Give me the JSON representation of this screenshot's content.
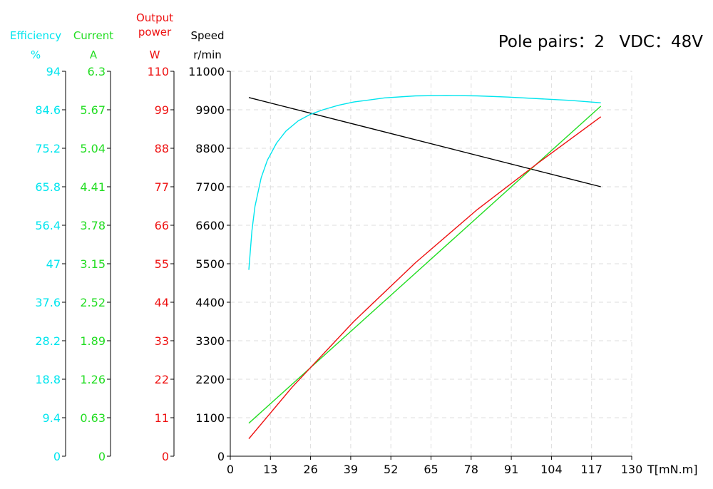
{
  "header": {
    "pole_pairs": "Pole pairs：2",
    "vdc": "VDC：48V"
  },
  "axes": {
    "efficiency": {
      "title": "Efficiency",
      "unit": "%",
      "color": "#00e5ee",
      "ticks": [
        "0",
        "9.4",
        "18.8",
        "28.2",
        "37.6",
        "47",
        "56.4",
        "65.8",
        "75.2",
        "84.6",
        "94"
      ]
    },
    "current": {
      "title": "Current",
      "unit": "A",
      "color": "#22dd22",
      "ticks": [
        "0",
        "0.63",
        "1.26",
        "1.89",
        "2.52",
        "3.15",
        "3.78",
        "4.41",
        "5.04",
        "5.67",
        "6.3"
      ]
    },
    "power": {
      "title": "Output\npower",
      "unit": "W",
      "color": "#ee1111",
      "ticks": [
        "0",
        "11",
        "22",
        "33",
        "44",
        "55",
        "66",
        "77",
        "88",
        "99",
        "110"
      ]
    },
    "speed": {
      "title": "Speed",
      "unit": "r/min",
      "color": "#000000",
      "ticks": [
        "0",
        "1100",
        "2200",
        "3300",
        "4400",
        "5500",
        "6600",
        "7700",
        "8800",
        "9900",
        "11000"
      ]
    },
    "torque": {
      "label": "T[mN.m]",
      "ticks": [
        "0",
        "13",
        "26",
        "39",
        "52",
        "65",
        "78",
        "91",
        "104",
        "117",
        "130"
      ]
    }
  },
  "chart_data": {
    "type": "line",
    "xlabel": "T[mN.m]",
    "xlim": [
      0,
      130
    ],
    "grid": true,
    "series": [
      {
        "axis": "speed",
        "ylim": [
          0,
          11000
        ],
        "color": "#000000",
        "x": [
          6,
          120
        ],
        "y": [
          10250,
          7700
        ]
      },
      {
        "axis": "efficiency",
        "ylim": [
          0,
          94
        ],
        "color": "#00e5ee",
        "x": [
          6,
          7,
          8,
          10,
          12,
          15,
          18,
          22,
          26,
          30,
          35,
          40,
          50,
          60,
          70,
          80,
          90,
          100,
          110,
          120
        ],
        "y": [
          45.5,
          55,
          61,
          68,
          72.3,
          76.5,
          79.4,
          81.9,
          83.5,
          84.6,
          85.7,
          86.5,
          87.5,
          88,
          88.1,
          88,
          87.7,
          87.3,
          86.9,
          86.3
        ]
      },
      {
        "axis": "current",
        "ylim": [
          0,
          6.3
        ],
        "color": "#22dd22",
        "x": [
          6,
          120
        ],
        "y": [
          0.54,
          5.73
        ]
      },
      {
        "axis": "power",
        "ylim": [
          0,
          110
        ],
        "color": "#ee1111",
        "x": [
          6,
          20,
          40,
          60,
          80,
          100,
          120
        ],
        "y": [
          5,
          19.7,
          38.5,
          55.3,
          70.5,
          84,
          97
        ]
      }
    ]
  }
}
